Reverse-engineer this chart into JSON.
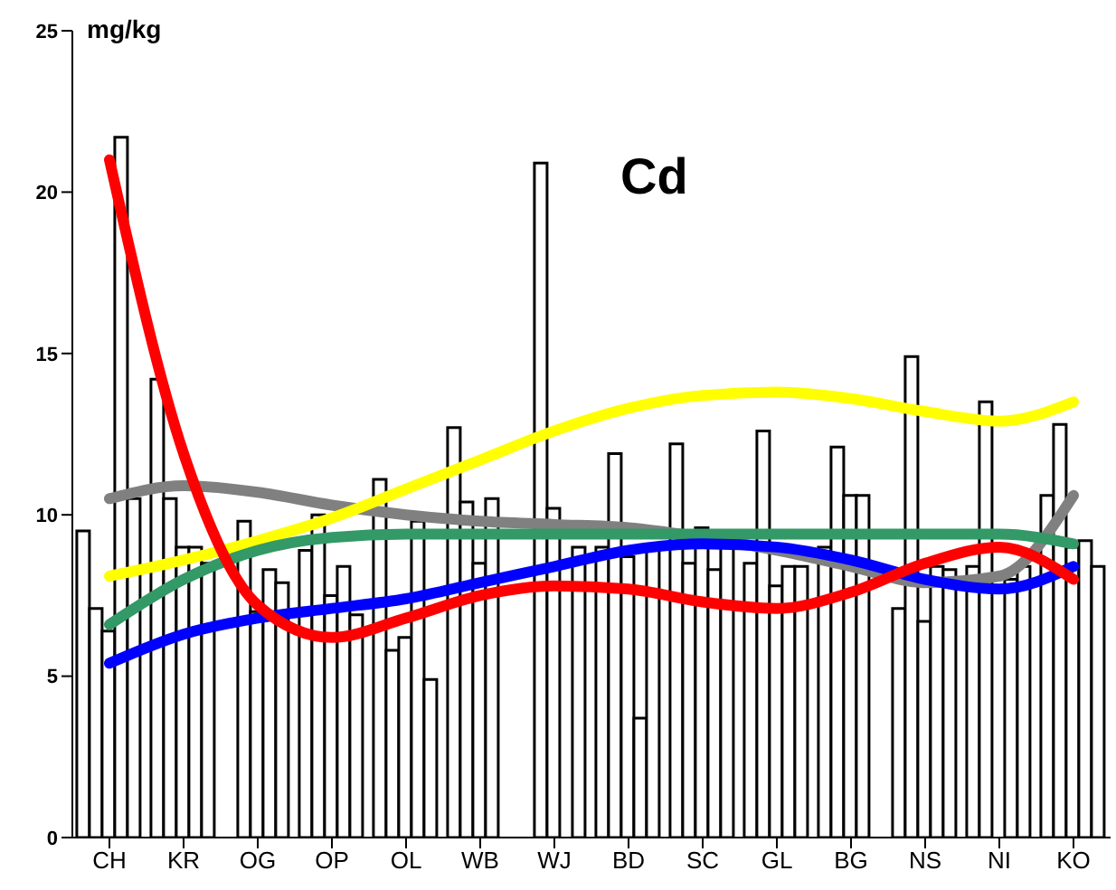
{
  "chart_data": {
    "type": "bar",
    "title": "Cd",
    "ylabel": "mg/kg",
    "categories": [
      "CH",
      "KR",
      "OG",
      "OP",
      "OL",
      "WB",
      "WJ",
      "BD",
      "SC",
      "GL",
      "BG",
      "NS",
      "NI",
      "KO"
    ],
    "ylim": [
      0,
      25
    ],
    "yticks": [
      0,
      5,
      10,
      15,
      20,
      25
    ],
    "grid": false,
    "marker": "none",
    "series": [
      {
        "color": "#ffffff",
        "values": [
          9.5,
          14.2,
          null,
          8.9,
          11.1,
          12.7,
          null,
          9.0,
          12.2,
          8.5,
          9.0,
          7.1,
          8.4,
          10.6
        ]
      },
      {
        "color": "#ffffff",
        "values": [
          7.1,
          10.5,
          9.8,
          10.0,
          5.8,
          10.4,
          20.9,
          11.9,
          8.5,
          12.6,
          12.1,
          14.9,
          13.5,
          12.8
        ]
      },
      {
        "color": "#ffffff",
        "values": [
          6.4,
          9.0,
          7.0,
          7.5,
          6.2,
          8.5,
          10.2,
          8.7,
          9.6,
          7.8,
          10.6,
          6.7,
          null,
          9.0
        ]
      },
      {
        "color": "#ffffff",
        "values": [
          21.7,
          9.0,
          8.3,
          8.4,
          9.8,
          10.5,
          null,
          3.7,
          8.3,
          8.4,
          10.6,
          8.4,
          8.0,
          9.2
        ]
      },
      {
        "color": "#ffffff",
        "values": [
          10.5,
          8.5,
          7.9,
          6.9,
          4.9,
          null,
          9.0,
          9.0,
          9.0,
          8.4,
          null,
          8.3,
          8.4,
          8.4
        ]
      },
      {
        "type": "line",
        "color": "#808080",
        "values": [
          10.5,
          10.9,
          10.7,
          10.3,
          10.0,
          9.8,
          9.7,
          9.6,
          9.3,
          8.9,
          8.4,
          7.9,
          8.1,
          10.6
        ]
      },
      {
        "type": "line",
        "color": "#ffff00",
        "values": [
          8.1,
          8.6,
          9.2,
          9.9,
          10.8,
          11.7,
          12.6,
          13.3,
          13.7,
          13.8,
          13.6,
          13.2,
          12.9,
          13.5
        ]
      },
      {
        "type": "line",
        "color": "#339966",
        "values": [
          6.6,
          8.0,
          8.9,
          9.3,
          9.4,
          9.4,
          9.4,
          9.4,
          9.4,
          9.4,
          9.4,
          9.4,
          9.4,
          9.1
        ]
      },
      {
        "type": "line",
        "color": "#0000ff",
        "values": [
          5.4,
          6.3,
          6.8,
          7.1,
          7.4,
          7.9,
          8.4,
          8.9,
          9.1,
          9.0,
          8.6,
          8.0,
          7.7,
          8.4
        ]
      },
      {
        "type": "line",
        "color": "#ff0000",
        "values": [
          21.0,
          11.9,
          7.2,
          6.2,
          6.8,
          7.5,
          7.8,
          7.7,
          7.3,
          7.1,
          7.6,
          8.5,
          9.0,
          8.0
        ]
      }
    ]
  }
}
